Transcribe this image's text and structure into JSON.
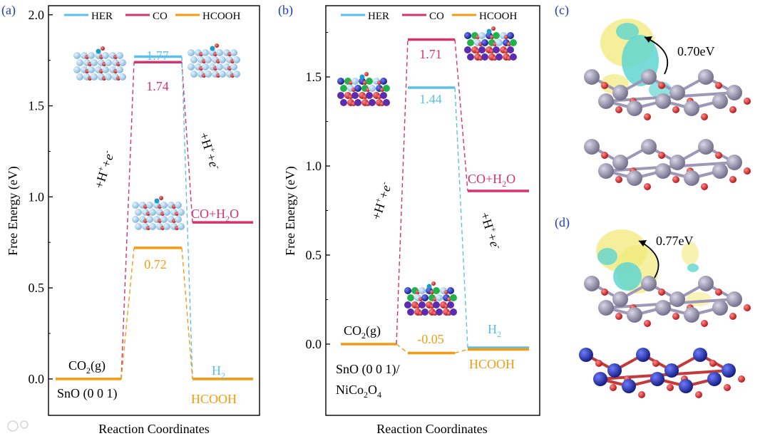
{
  "colors": {
    "her": "#5bc0eb",
    "co": "#d6336c",
    "hcooh": "#f39c12",
    "panel_label": "#1f3fb4",
    "reaction_text": "#000000",
    "spin_yellow": "#f2ea7a",
    "spin_cyan": "#5fd6d0",
    "sn_atom": "#8f8ba6",
    "o_atom": "#d41c1c",
    "ni_atom": "#1c2aa6",
    "co_atom": "#b8b8b8"
  },
  "chart_data": [
    {
      "panel": "(a)",
      "type": "line",
      "ylabel": "Free Energy (eV)",
      "xlabel": "Reaction Coordinates",
      "ylim": [
        -0.2,
        2.05
      ],
      "yticks": [
        "0.0",
        "0.5",
        "1.0",
        "1.5",
        "2.0"
      ],
      "legend": [
        "HER",
        "CO",
        "HCOOH"
      ],
      "legend_position": "top",
      "series": [
        {
          "name": "HER",
          "values": [
            0.0,
            1.77,
            0.0
          ]
        },
        {
          "name": "CO",
          "values": [
            0.0,
            1.74,
            0.86
          ]
        },
        {
          "name": "HCOOH",
          "values": [
            0.0,
            0.72,
            0.0
          ]
        }
      ],
      "labels": {
        "her_mid": "1.77",
        "co_mid": "1.74",
        "hcooh_mid": "0.72",
        "start_a": "CO",
        "start_b": "2",
        "start_c": "(g)",
        "surface": "SnO (0 0 1)",
        "co_end_a": "CO+H",
        "co_end_b": "2",
        "co_end_c": "O",
        "her_end_a": "H",
        "her_end_b": "2",
        "hcooh_end": "HCOOH",
        "step1_a": "+H",
        "step1_b": "+",
        "step1_c": "+e",
        "step1_d": "-",
        "step2_a": "+H",
        "step2_b": "+",
        "step2_c": "+e",
        "step2_d": "-"
      }
    },
    {
      "panel": "(b)",
      "type": "line",
      "ylabel": "Free Energy (eV)",
      "xlabel": "Reaction Coordinates",
      "ylim": [
        -0.4,
        1.9
      ],
      "yticks": [
        "0.0",
        "0.5",
        "1.0",
        "1.5"
      ],
      "legend": [
        "HER",
        "CO",
        "HCOOH"
      ],
      "legend_position": "top",
      "series": [
        {
          "name": "HER",
          "values": [
            0.0,
            1.44,
            -0.02
          ]
        },
        {
          "name": "CO",
          "values": [
            0.0,
            1.71,
            0.86
          ]
        },
        {
          "name": "HCOOH",
          "values": [
            0.0,
            -0.05,
            -0.03
          ]
        }
      ],
      "labels": {
        "her_mid": "1.44",
        "co_mid": "1.71",
        "hcooh_mid": "-0.05",
        "start_a": "CO",
        "start_b": "2",
        "start_c": "(g)",
        "surface_a": "SnO (0 0 1)/",
        "surface_b": "NiCo",
        "surface_c": "2",
        "surface_d": "O",
        "surface_e": "4",
        "co_end_a": "CO+H",
        "co_end_b": "2",
        "co_end_c": "O",
        "her_end_a": "H",
        "her_end_b": "2",
        "hcooh_end": "HCOOH",
        "step1_a": "+H",
        "step1_b": "+",
        "step1_c": "+e",
        "step1_d": "-",
        "step2_a": "+H",
        "step2_b": "+",
        "step2_c": "+e",
        "step2_d": "-"
      }
    }
  ],
  "panel_c": {
    "label": "(c)",
    "energy": "0.70eV"
  },
  "panel_d": {
    "label": "(d)",
    "energy": "0.77eV"
  }
}
